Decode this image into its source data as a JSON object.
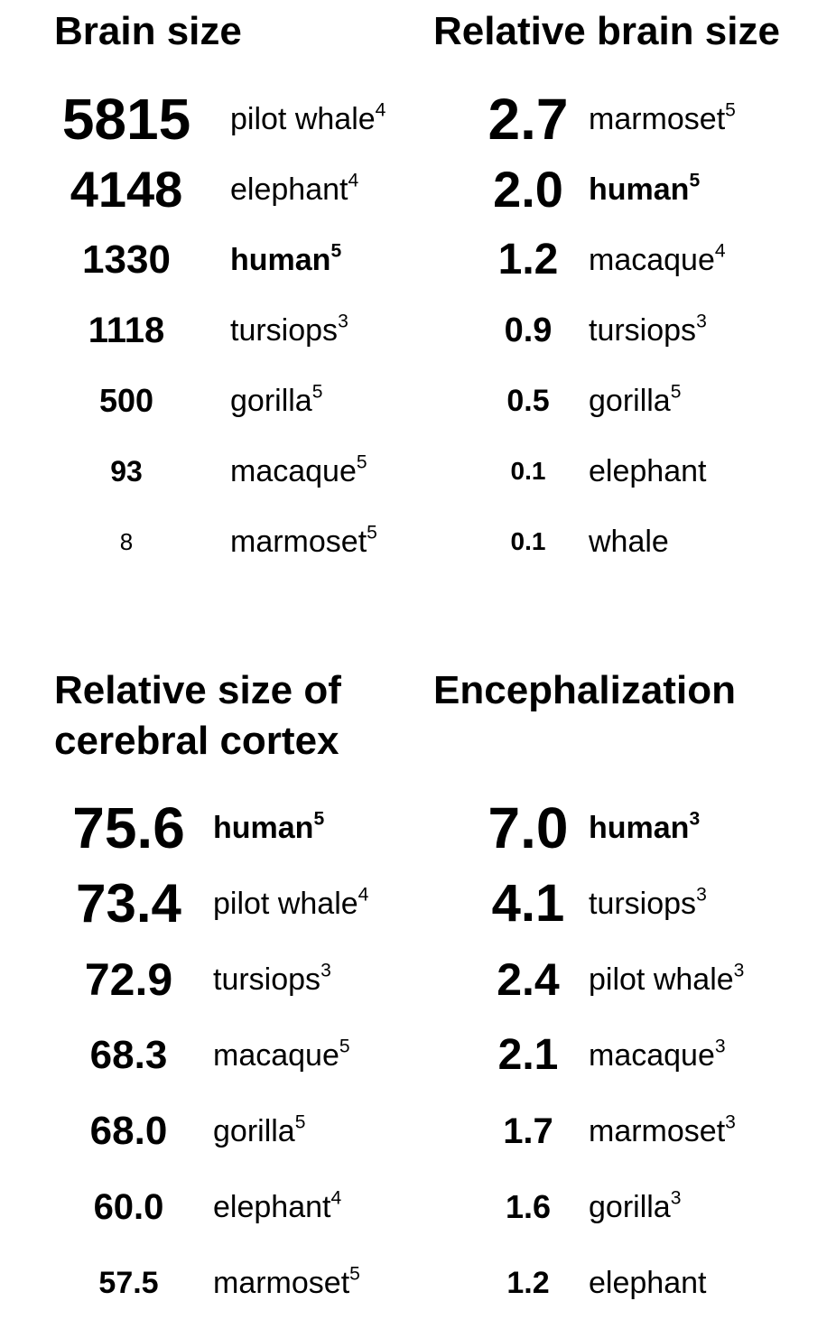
{
  "panels": [
    {
      "title_lines": [
        "Brain size",
        ""
      ],
      "rows": [
        {
          "value": "5815",
          "label": "pilot whale",
          "sup": "4",
          "bold": false
        },
        {
          "value": "4148",
          "label": "elephant",
          "sup": "4",
          "bold": false
        },
        {
          "value": "1330",
          "label": "human",
          "sup": "5",
          "bold": true
        },
        {
          "value": "1118",
          "label": "tursiops",
          "sup": "3",
          "bold": false
        },
        {
          "value": "500",
          "label": "gorilla",
          "sup": "5",
          "bold": false
        },
        {
          "value": "93",
          "label": "macaque",
          "sup": "5",
          "bold": false
        },
        {
          "value": "8",
          "label": "marmoset",
          "sup": "5",
          "bold": false
        }
      ]
    },
    {
      "title_lines": [
        "Relative brain size",
        ""
      ],
      "rows": [
        {
          "value": "2.7",
          "label": "marmoset",
          "sup": "5",
          "bold": false
        },
        {
          "value": "2.0",
          "label": "human",
          "sup": "5",
          "bold": true
        },
        {
          "value": "1.2",
          "label": "macaque",
          "sup": "4",
          "bold": false
        },
        {
          "value": "0.9",
          "label": "tursiops",
          "sup": "3",
          "bold": false
        },
        {
          "value": "0.5",
          "label": "gorilla",
          "sup": "5",
          "bold": false
        },
        {
          "value": "0.1",
          "label": "elephant",
          "sup": "",
          "bold": false
        },
        {
          "value": "0.1",
          "label": "whale",
          "sup": "",
          "bold": false
        }
      ]
    },
    {
      "title_lines": [
        "Relative size of",
        "cerebral cortex"
      ],
      "rows": [
        {
          "value": "75.6",
          "label": "human",
          "sup": "5",
          "bold": true
        },
        {
          "value": "73.4",
          "label": "pilot whale",
          "sup": "4",
          "bold": false
        },
        {
          "value": "72.9",
          "label": "tursiops",
          "sup": "3",
          "bold": false
        },
        {
          "value": "68.3",
          "label": "macaque",
          "sup": "5",
          "bold": false
        },
        {
          "value": "68.0",
          "label": "gorilla",
          "sup": "5",
          "bold": false
        },
        {
          "value": "60.0",
          "label": "elephant",
          "sup": "4",
          "bold": false
        },
        {
          "value": "57.5",
          "label": "marmoset",
          "sup": "5",
          "bold": false
        }
      ]
    },
    {
      "title_lines": [
        "Encephalization",
        ""
      ],
      "rows": [
        {
          "value": "7.0",
          "label": "human",
          "sup": "3",
          "bold": true
        },
        {
          "value": "4.1",
          "label": "tursiops",
          "sup": "3",
          "bold": false
        },
        {
          "value": "2.4",
          "label": "pilot whale",
          "sup": "3",
          "bold": false
        },
        {
          "value": "2.1",
          "label": "macaque",
          "sup": "3",
          "bold": false
        },
        {
          "value": "1.7",
          "label": "marmoset",
          "sup": "3",
          "bold": false
        },
        {
          "value": "1.6",
          "label": "gorilla",
          "sup": "3",
          "bold": false
        },
        {
          "value": "1.2",
          "label": "elephant",
          "sup": "",
          "bold": false
        }
      ]
    }
  ]
}
